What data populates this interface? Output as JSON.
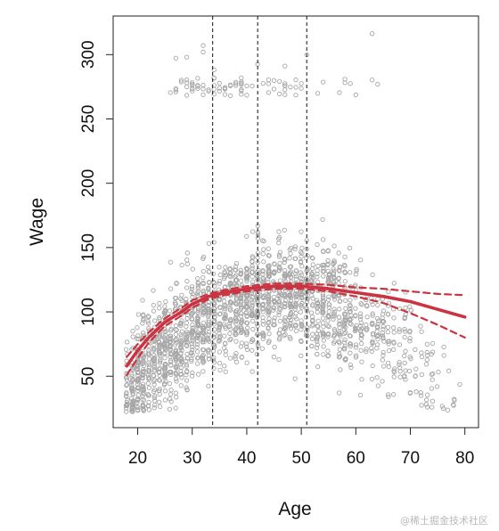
{
  "chart_data": {
    "type": "scatter",
    "xlabel": "Age",
    "ylabel": "Wage",
    "xlim": [
      15.5,
      82.5
    ],
    "ylim": [
      10,
      330
    ],
    "x_ticks": [
      20,
      30,
      40,
      50,
      60,
      70,
      80
    ],
    "y_ticks": [
      50,
      100,
      150,
      200,
      250,
      300
    ],
    "y_tick_rotation": "vertical",
    "grid": false,
    "legend": "none",
    "knots": [
      33.75,
      42,
      51
    ],
    "knot_style": "dashed black vertical lines",
    "point_color": "#a6a6a6",
    "fit_color": "#cc3340",
    "series": [
      {
        "style": "solid red line (fitted spline)",
        "points": [
          [
            18,
            58
          ],
          [
            20,
            70
          ],
          [
            22,
            80
          ],
          [
            25,
            92
          ],
          [
            28,
            100
          ],
          [
            30,
            106
          ],
          [
            33,
            112
          ],
          [
            36,
            115
          ],
          [
            40,
            118
          ],
          [
            45,
            120
          ],
          [
            50,
            120
          ],
          [
            55,
            118
          ],
          [
            60,
            115
          ],
          [
            65,
            112
          ],
          [
            70,
            108
          ],
          [
            75,
            102
          ],
          [
            80,
            96
          ]
        ]
      },
      {
        "style": "dashed red line (upper confidence band)",
        "points": [
          [
            18,
            65
          ],
          [
            20,
            75
          ],
          [
            22,
            84
          ],
          [
            25,
            95
          ],
          [
            28,
            103
          ],
          [
            30,
            109
          ],
          [
            33,
            114
          ],
          [
            36,
            117
          ],
          [
            40,
            120
          ],
          [
            45,
            122
          ],
          [
            50,
            122
          ],
          [
            55,
            121
          ],
          [
            60,
            119
          ],
          [
            65,
            118
          ],
          [
            70,
            116
          ],
          [
            75,
            114
          ],
          [
            80,
            113
          ]
        ]
      },
      {
        "style": "dashed red line (lower confidence band)",
        "points": [
          [
            18,
            51
          ],
          [
            20,
            64
          ],
          [
            22,
            76
          ],
          [
            25,
            89
          ],
          [
            28,
            97
          ],
          [
            30,
            103
          ],
          [
            33,
            110
          ],
          [
            36,
            113
          ],
          [
            40,
            116
          ],
          [
            45,
            118
          ],
          [
            50,
            118
          ],
          [
            55,
            116
          ],
          [
            60,
            112
          ],
          [
            65,
            107
          ],
          [
            70,
            99
          ],
          [
            75,
            90
          ],
          [
            80,
            80
          ]
        ]
      }
    ],
    "upper_cluster": {
      "description": "high earners band",
      "y_range": [
        255,
        320
      ],
      "x_range": [
        26,
        67
      ]
    }
  },
  "watermark": "@稀土掘金技术社区"
}
